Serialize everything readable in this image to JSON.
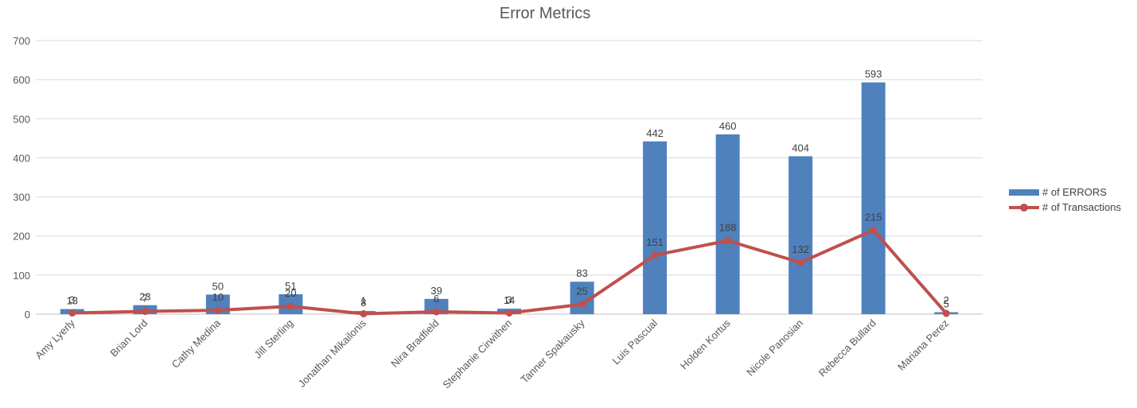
{
  "chart_data": {
    "type": "bar",
    "title": "Error Metrics",
    "categories": [
      "Amy Lyerly",
      "Brian Lord",
      "Cathy Medina",
      "Jill Sterling",
      "Jonathan Mikailonis",
      "Nira Bradfield",
      "Stephanie Cirwithen",
      "Tanner Spakausky",
      "Luis Pascual",
      "Holden Kortus",
      "Nicole Panosian",
      "Rebecca Bullard",
      "Mariana Perez"
    ],
    "series": [
      {
        "name": "# of ERRORS",
        "type": "bar",
        "color": "#4f81bd",
        "values": [
          13,
          23,
          50,
          51,
          8,
          39,
          14,
          83,
          442,
          460,
          404,
          593,
          5
        ]
      },
      {
        "name": "# of Transactions",
        "type": "line",
        "color": "#c0504d",
        "values": [
          3,
          7,
          10,
          20,
          1,
          6,
          3,
          25,
          151,
          188,
          132,
          215,
          2
        ]
      }
    ],
    "ylim": [
      0,
      700
    ],
    "yticks": [
      0,
      100,
      200,
      300,
      400,
      500,
      600,
      700
    ],
    "xlabel": "",
    "ylabel": "",
    "grid": true,
    "legend_position": "right"
  }
}
